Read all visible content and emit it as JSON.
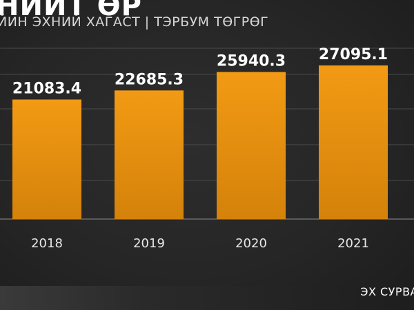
{
  "header": {
    "title": "НИЙТ ӨР",
    "subtitle": "ЙИН ЭХНИЙ ХАГАСТ | ТЭРБУМ ТӨГРӨГ"
  },
  "footer": {
    "source_label": "ЭХ СУРВА"
  },
  "colors": {
    "bar": "#e8920f",
    "bar_bottom": "#c87a08",
    "grid": "#4a4a4a",
    "text": "#ffffff"
  },
  "chart_data": {
    "type": "bar",
    "categories": [
      "2018",
      "2019",
      "2020",
      "2021"
    ],
    "values": [
      21083.4,
      22685.3,
      25940.3,
      27095.1
    ],
    "title": "НИЙТ ӨР",
    "subtitle": "ЙИН ЭХНИЙ ХАГАСТ | ТЭРБУМ ТӨГРӨГ",
    "xlabel": "",
    "ylabel": "",
    "ylim": [
      0,
      27095.1
    ],
    "grid": true,
    "legend": "none",
    "data_labels": [
      "21083.4",
      "22685.3",
      "25940.3",
      "27095.1"
    ]
  }
}
